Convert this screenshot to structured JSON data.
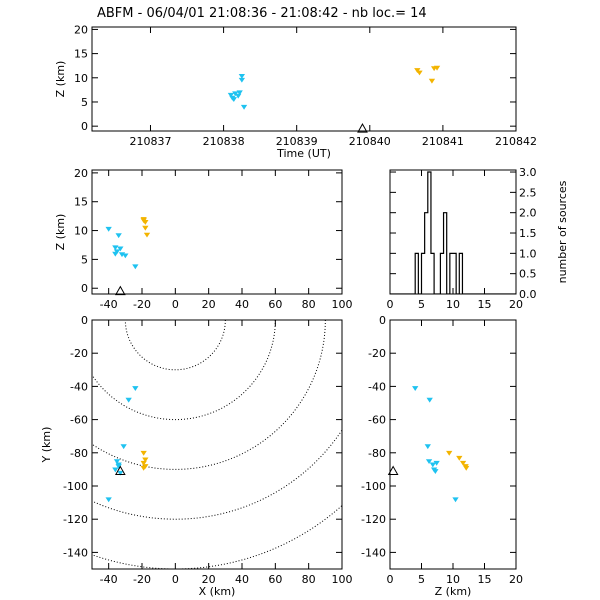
{
  "title": "ABFM - 06/04/01 21:08:36 - 21:08:42 - nb loc.=      14",
  "colors": {
    "early": "#1ec2f0",
    "late": "#f3b400",
    "axis": "#000000"
  },
  "chart_data": [
    {
      "panel": "time-z",
      "type": "scatter",
      "xlabel": "Time (UT)",
      "ylabel": "Z (km)",
      "xlim": [
        210836.2,
        210842
      ],
      "ylim": [
        -1,
        20.5
      ],
      "xticks": [
        210837,
        210838,
        210839,
        210840,
        210841,
        210842
      ],
      "xtick_labels": [
        "210837",
        "210838",
        "210839",
        "210840",
        "210841",
        "210842"
      ],
      "yticks": [
        0,
        5,
        10,
        15,
        20
      ],
      "ytick_labels": [
        "0",
        "5",
        "10",
        "15",
        "20"
      ],
      "points": [
        {
          "x": 210838.1,
          "y": 6.5,
          "c": "early"
        },
        {
          "x": 210838.12,
          "y": 5.9,
          "c": "early"
        },
        {
          "x": 210838.16,
          "y": 6.8,
          "c": "early"
        },
        {
          "x": 210838.2,
          "y": 6.3,
          "c": "early"
        },
        {
          "x": 210838.22,
          "y": 7.0,
          "c": "early"
        },
        {
          "x": 210838.25,
          "y": 9.6,
          "c": "early"
        },
        {
          "x": 210838.25,
          "y": 10.4,
          "c": "early"
        },
        {
          "x": 210838.28,
          "y": 4.0,
          "c": "early"
        },
        {
          "x": 210838.14,
          "y": 5.6,
          "c": "early"
        },
        {
          "x": 210840.65,
          "y": 11.6,
          "c": "late"
        },
        {
          "x": 210840.68,
          "y": 11.1,
          "c": "late"
        },
        {
          "x": 210840.85,
          "y": 9.4,
          "c": "late"
        },
        {
          "x": 210840.88,
          "y": 12.0,
          "c": "late"
        },
        {
          "x": 210840.92,
          "y": 12.1,
          "c": "late"
        }
      ],
      "station": {
        "x": 210839.9,
        "y": -0.5
      }
    },
    {
      "panel": "x-z",
      "type": "scatter",
      "xlabel": "",
      "ylabel": "Z (km)",
      "xlim": [
        -50,
        100
      ],
      "ylim": [
        -1,
        20.5
      ],
      "xticks": [
        -40,
        -20,
        0,
        20,
        40,
        60,
        80,
        100
      ],
      "xtick_labels": [
        "-40",
        "-20",
        "0",
        "20",
        "40",
        "60",
        "80",
        "100"
      ],
      "yticks": [
        0,
        5,
        10,
        15,
        20
      ],
      "ytick_labels": [
        "0",
        "5",
        "10",
        "15",
        "20"
      ],
      "points": [
        {
          "x": -40,
          "y": 10.3,
          "c": "early"
        },
        {
          "x": -36,
          "y": 7.1,
          "c": "early"
        },
        {
          "x": -35,
          "y": 6.4,
          "c": "early"
        },
        {
          "x": -34,
          "y": 9.2,
          "c": "early"
        },
        {
          "x": -33,
          "y": 6.9,
          "c": "early"
        },
        {
          "x": -32,
          "y": 5.9,
          "c": "early"
        },
        {
          "x": -30,
          "y": 5.7,
          "c": "early"
        },
        {
          "x": -24,
          "y": 3.8,
          "c": "early"
        },
        {
          "x": -36,
          "y": 6.0,
          "c": "early"
        },
        {
          "x": -19,
          "y": 12.0,
          "c": "late"
        },
        {
          "x": -18,
          "y": 11.5,
          "c": "late"
        },
        {
          "x": -18,
          "y": 10.5,
          "c": "late"
        },
        {
          "x": -17,
          "y": 9.3,
          "c": "late"
        },
        {
          "x": -19,
          "y": 11.8,
          "c": "late"
        }
      ],
      "station": {
        "x": -33,
        "y": -0.5
      }
    },
    {
      "panel": "z-histogram",
      "type": "histogram",
      "xlabel": "",
      "ylabel": "number of sources",
      "xlim": [
        0,
        20
      ],
      "ylim": [
        0,
        3.05
      ],
      "xticks": [
        0,
        5,
        10,
        15,
        20
      ],
      "xtick_labels": [
        "0",
        "5",
        "10",
        "15",
        "20"
      ],
      "yticks": [
        0,
        0.5,
        1.0,
        1.5,
        2.0,
        2.5,
        3.0
      ],
      "ytick_labels": [
        "0.0",
        "0.5",
        "1.0",
        "1.5",
        "2.0",
        "2.5",
        "3.0"
      ],
      "bin_edges": [
        0,
        0.5,
        1,
        1.5,
        2,
        2.5,
        3,
        3.5,
        4,
        4.5,
        5,
        5.5,
        6,
        6.5,
        7,
        7.5,
        8,
        8.5,
        9,
        9.5,
        10,
        10.5,
        11,
        11.5,
        12,
        12.5,
        13,
        13.5,
        14,
        14.5,
        15,
        15.5,
        16,
        16.5,
        17,
        17.5,
        18,
        18.5,
        19,
        19.5,
        20
      ],
      "counts": [
        0,
        0,
        0,
        0,
        0,
        0,
        0,
        0,
        1,
        0,
        1,
        2,
        3,
        1,
        0,
        0,
        1,
        2,
        0,
        1,
        1,
        0,
        1,
        0,
        0,
        0,
        0,
        0,
        0,
        0,
        0,
        0,
        0,
        0,
        0,
        0,
        0,
        0,
        0,
        0
      ]
    },
    {
      "panel": "x-y",
      "type": "scatter",
      "xlabel": "X (km)",
      "ylabel": "Y (km)",
      "xlim": [
        -50,
        100
      ],
      "ylim": [
        -150,
        0
      ],
      "xticks": [
        -40,
        -20,
        0,
        20,
        40,
        60,
        80,
        100
      ],
      "xtick_labels": [
        "-40",
        "-20",
        "0",
        "20",
        "40",
        "60",
        "80",
        "100"
      ],
      "yticks": [
        0,
        -20,
        -40,
        -60,
        -80,
        -100,
        -120,
        -140
      ],
      "ytick_labels": [
        "0",
        "-20",
        "-40",
        "-60",
        "-80",
        "-100",
        "-120",
        "-140"
      ],
      "contour_center": {
        "x": 0,
        "y": 0
      },
      "contour_radii": [
        30,
        60,
        90,
        120,
        150
      ],
      "points": [
        {
          "x": -40,
          "y": -108,
          "c": "early"
        },
        {
          "x": -36,
          "y": -90,
          "c": "early"
        },
        {
          "x": -35,
          "y": -85,
          "c": "early"
        },
        {
          "x": -34,
          "y": -87,
          "c": "early"
        },
        {
          "x": -33,
          "y": -92,
          "c": "early"
        },
        {
          "x": -31,
          "y": -76,
          "c": "early"
        },
        {
          "x": -28,
          "y": -48,
          "c": "early"
        },
        {
          "x": -24,
          "y": -41,
          "c": "early"
        },
        {
          "x": -34,
          "y": -88,
          "c": "early"
        },
        {
          "x": -19,
          "y": -80,
          "c": "late"
        },
        {
          "x": -19,
          "y": -86,
          "c": "late"
        },
        {
          "x": -18,
          "y": -88,
          "c": "late"
        },
        {
          "x": -18,
          "y": -84,
          "c": "late"
        },
        {
          "x": -19,
          "y": -89,
          "c": "late"
        }
      ],
      "station": {
        "x": -33,
        "y": -91
      }
    },
    {
      "panel": "z-y",
      "type": "scatter",
      "xlabel": "Z (km)",
      "ylabel": "",
      "xlim": [
        0,
        20
      ],
      "ylim": [
        -150,
        0
      ],
      "xticks": [
        0,
        5,
        10,
        15,
        20
      ],
      "xtick_labels": [
        "0",
        "5",
        "10",
        "15",
        "20"
      ],
      "yticks": [
        0,
        -20,
        -40,
        -60,
        -80,
        -100,
        -120,
        -140
      ],
      "ytick_labels": [
        "0",
        "-20",
        "-40",
        "-60",
        "-80",
        "-100",
        "-120",
        "-140"
      ],
      "points": [
        {
          "x": 4.0,
          "y": -41,
          "c": "early"
        },
        {
          "x": 6.3,
          "y": -48,
          "c": "early"
        },
        {
          "x": 6.0,
          "y": -76,
          "c": "early"
        },
        {
          "x": 6.2,
          "y": -85,
          "c": "early"
        },
        {
          "x": 6.8,
          "y": -87,
          "c": "early"
        },
        {
          "x": 7.0,
          "y": -90,
          "c": "early"
        },
        {
          "x": 7.4,
          "y": -86,
          "c": "early"
        },
        {
          "x": 7.2,
          "y": -91,
          "c": "early"
        },
        {
          "x": 10.4,
          "y": -108,
          "c": "early"
        },
        {
          "x": 9.4,
          "y": -80,
          "c": "late"
        },
        {
          "x": 11.0,
          "y": -83,
          "c": "late"
        },
        {
          "x": 11.6,
          "y": -86,
          "c": "late"
        },
        {
          "x": 12.0,
          "y": -88,
          "c": "late"
        },
        {
          "x": 12.1,
          "y": -89,
          "c": "late"
        }
      ],
      "station": {
        "x": 0.5,
        "y": -91
      }
    }
  ]
}
